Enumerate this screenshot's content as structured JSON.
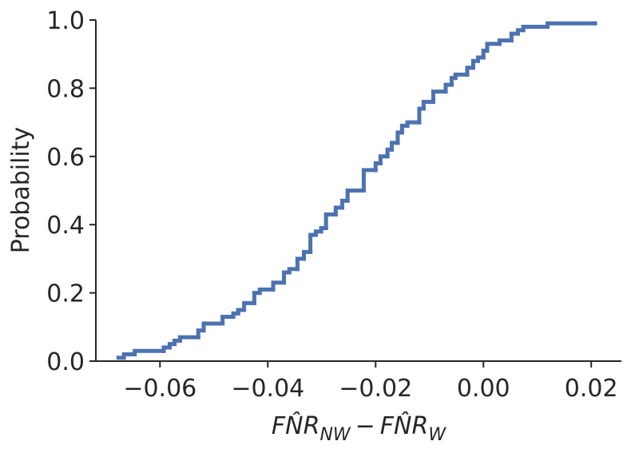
{
  "chart_data": {
    "type": "ecdf",
    "xlabel": {
      "term1": "FN̂R",
      "sub1": "NW",
      "operator": "−",
      "term2": "FN̂R",
      "sub2": "W"
    },
    "ylabel": "Probability",
    "color": "#4c72b0",
    "x": [
      -0.0677,
      -0.0667,
      -0.0647,
      -0.0593,
      -0.0582,
      -0.0573,
      -0.0563,
      -0.0529,
      -0.0519,
      -0.0484,
      -0.0464,
      -0.0455,
      -0.0444,
      -0.0425,
      -0.0415,
      -0.039,
      -0.037,
      -0.036,
      -0.0345,
      -0.0333,
      -0.0321,
      -0.0311,
      -0.0301,
      -0.0292,
      -0.0274,
      -0.0262,
      -0.0252,
      -0.0222,
      -0.02,
      -0.0191,
      -0.0178,
      -0.017,
      -0.0159,
      -0.0151,
      -0.0141,
      -0.0119,
      -0.0111,
      -0.0093,
      -0.007,
      -0.0059,
      -0.0052,
      -0.003,
      -0.0019,
      -0.001,
      0.0,
      0.0007,
      0.003,
      0.0052,
      0.0064,
      0.0074,
      0.0119,
      0.0207
    ],
    "values": [
      0.01,
      0.02,
      0.03,
      0.04,
      0.05,
      0.06,
      0.07,
      0.09,
      0.11,
      0.13,
      0.14,
      0.15,
      0.17,
      0.2,
      0.21,
      0.23,
      0.26,
      0.27,
      0.3,
      0.32,
      0.37,
      0.38,
      0.39,
      0.43,
      0.45,
      0.47,
      0.5,
      0.56,
      0.58,
      0.6,
      0.62,
      0.64,
      0.67,
      0.69,
      0.7,
      0.74,
      0.76,
      0.79,
      0.81,
      0.83,
      0.84,
      0.86,
      0.88,
      0.89,
      0.91,
      0.93,
      0.94,
      0.96,
      0.97,
      0.98,
      0.99,
      0.99
    ],
    "xlim": [
      -0.0719,
      0.0256
    ],
    "ylim": [
      0,
      1
    ],
    "xticks": [
      {
        "value": -0.06,
        "label": "−0.06"
      },
      {
        "value": -0.04,
        "label": "−0.04"
      },
      {
        "value": -0.02,
        "label": "−0.02"
      },
      {
        "value": 0,
        "label": "0.00"
      },
      0.02
    ],
    "yticks": [
      {
        "value": 0,
        "label": "0.0"
      },
      0.2,
      0.4,
      0.6,
      0.8,
      {
        "value": 1,
        "label": "1.0"
      }
    ]
  }
}
